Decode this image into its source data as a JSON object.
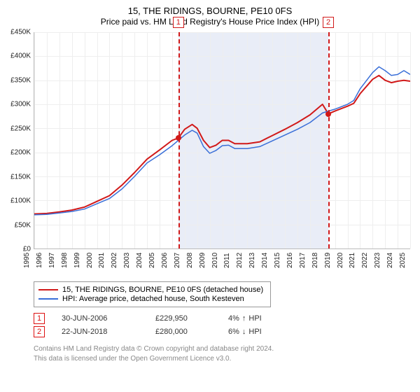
{
  "title": "15, THE RIDINGS, BOURNE, PE10 0FS",
  "subtitle": "Price paid vs. HM Land Registry's House Price Index (HPI)",
  "chart": {
    "type": "line",
    "background_color": "#ffffff",
    "grid_color": "#eeeeee",
    "axis_color": "#bbbbbb",
    "band_color": "#e9edf7",
    "ylim": [
      0,
      450000
    ],
    "ytick_step": 50000,
    "y_ticks": [
      "£0",
      "£50K",
      "£100K",
      "£150K",
      "£200K",
      "£250K",
      "£300K",
      "£350K",
      "£400K",
      "£450K"
    ],
    "xlim": [
      1995,
      2025
    ],
    "x_ticks": [
      1995,
      1996,
      1997,
      1998,
      1999,
      2000,
      2001,
      2002,
      2003,
      2004,
      2005,
      2006,
      2007,
      2008,
      2009,
      2010,
      2011,
      2012,
      2013,
      2014,
      2015,
      2016,
      2017,
      2018,
      2019,
      2020,
      2021,
      2022,
      2023,
      2024,
      2025
    ],
    "band_years": [
      2006.5,
      2018.47
    ],
    "series": [
      {
        "name": "property",
        "label": "15, THE RIDINGS, BOURNE, PE10 0FS (detached house)",
        "color": "#d11919",
        "line_width": 2,
        "points": [
          [
            1995,
            72000
          ],
          [
            1996,
            73000
          ],
          [
            1997,
            76000
          ],
          [
            1998,
            80000
          ],
          [
            1999,
            86000
          ],
          [
            2000,
            98000
          ],
          [
            2001,
            110000
          ],
          [
            2002,
            132000
          ],
          [
            2003,
            158000
          ],
          [
            2004,
            186000
          ],
          [
            2005,
            205000
          ],
          [
            2006,
            225000
          ],
          [
            2006.5,
            229950
          ],
          [
            2007,
            248000
          ],
          [
            2007.6,
            258000
          ],
          [
            2008,
            250000
          ],
          [
            2008.5,
            225000
          ],
          [
            2009,
            210000
          ],
          [
            2009.5,
            215000
          ],
          [
            2010,
            225000
          ],
          [
            2010.5,
            225000
          ],
          [
            2011,
            218000
          ],
          [
            2012,
            218000
          ],
          [
            2013,
            222000
          ],
          [
            2014,
            235000
          ],
          [
            2015,
            248000
          ],
          [
            2016,
            262000
          ],
          [
            2017,
            278000
          ],
          [
            2018,
            300000
          ],
          [
            2018.47,
            280000
          ],
          [
            2019,
            286000
          ],
          [
            2020,
            296000
          ],
          [
            2020.5,
            302000
          ],
          [
            2021,
            322000
          ],
          [
            2022,
            352000
          ],
          [
            2022.5,
            360000
          ],
          [
            2023,
            350000
          ],
          [
            2023.5,
            345000
          ],
          [
            2024,
            348000
          ],
          [
            2024.5,
            350000
          ],
          [
            2025,
            348000
          ]
        ]
      },
      {
        "name": "hpi",
        "label": "HPI: Average price, detached house, South Kesteven",
        "color": "#3a6fd8",
        "line_width": 1.5,
        "points": [
          [
            1995,
            70000
          ],
          [
            1996,
            71000
          ],
          [
            1997,
            74000
          ],
          [
            1998,
            77000
          ],
          [
            1999,
            82000
          ],
          [
            2000,
            93000
          ],
          [
            2001,
            104000
          ],
          [
            2002,
            124000
          ],
          [
            2003,
            150000
          ],
          [
            2004,
            178000
          ],
          [
            2005,
            195000
          ],
          [
            2006,
            214000
          ],
          [
            2007,
            236000
          ],
          [
            2007.6,
            246000
          ],
          [
            2008,
            240000
          ],
          [
            2008.5,
            212000
          ],
          [
            2009,
            198000
          ],
          [
            2009.5,
            204000
          ],
          [
            2010,
            214000
          ],
          [
            2010.5,
            215000
          ],
          [
            2011,
            208000
          ],
          [
            2012,
            208000
          ],
          [
            2013,
            212000
          ],
          [
            2014,
            224000
          ],
          [
            2015,
            236000
          ],
          [
            2016,
            248000
          ],
          [
            2017,
            262000
          ],
          [
            2018,
            282000
          ],
          [
            2019,
            290000
          ],
          [
            2020,
            300000
          ],
          [
            2020.5,
            308000
          ],
          [
            2021,
            332000
          ],
          [
            2022,
            366000
          ],
          [
            2022.5,
            378000
          ],
          [
            2023,
            370000
          ],
          [
            2023.5,
            360000
          ],
          [
            2024,
            362000
          ],
          [
            2024.5,
            370000
          ],
          [
            2025,
            362000
          ]
        ]
      }
    ],
    "markers": [
      {
        "idx": "1",
        "year": 2006.5,
        "value": 229950,
        "color": "#d11919"
      },
      {
        "idx": "2",
        "year": 2018.47,
        "value": 280000,
        "color": "#d11919"
      }
    ],
    "marker_label_color": "#d11919",
    "marker_border_color": "#d11919",
    "label_fontsize": 10,
    "title_fontsize": 13
  },
  "transactions": [
    {
      "idx": "1",
      "date": "30-JUN-2006",
      "price": "£229,950",
      "delta_pct": "4%",
      "delta_dir": "↑",
      "delta_suffix": "HPI"
    },
    {
      "idx": "2",
      "date": "22-JUN-2018",
      "price": "£280,000",
      "delta_pct": "6%",
      "delta_dir": "↓",
      "delta_suffix": "HPI"
    }
  ],
  "footer": {
    "line1": "Contains HM Land Registry data © Crown copyright and database right 2024.",
    "line2": "This data is licensed under the Open Government Licence v3.0."
  }
}
